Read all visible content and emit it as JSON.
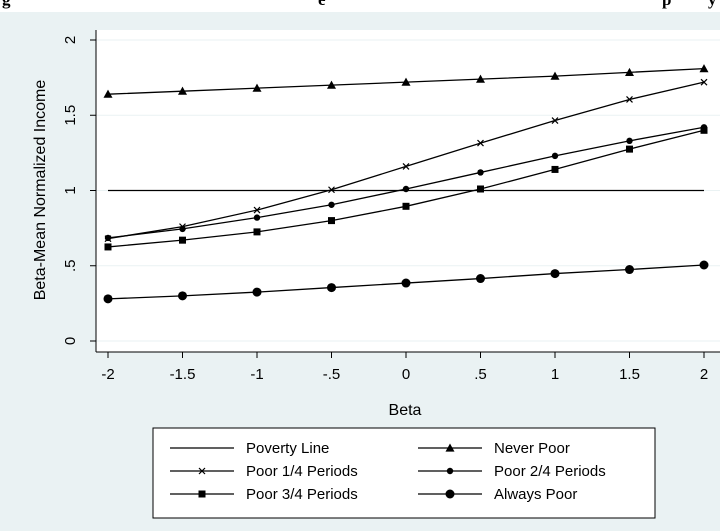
{
  "header_fragment": {
    "left_text": "g",
    "middle_text": "e",
    "right_text": "p",
    "right_text_2": "y"
  },
  "chart_data": {
    "type": "line",
    "title": "",
    "xlabel": "Beta",
    "ylabel": "Beta-Mean Normalized Income",
    "xlim": [
      -2,
      2
    ],
    "ylim": [
      0,
      2
    ],
    "x_ticks": [
      -2,
      -1.5,
      -1,
      -0.5,
      0,
      0.5,
      1,
      1.5,
      2
    ],
    "x_tick_labels": [
      "-2",
      "-1.5",
      "-1",
      "-.5",
      "0",
      ".5",
      "1",
      "1.5",
      "2"
    ],
    "y_ticks": [
      0,
      0.5,
      1,
      1.5,
      2
    ],
    "y_tick_labels": [
      "0",
      ".5",
      "1",
      "1.5",
      "2"
    ],
    "grid": "horizontal",
    "legend_position": "bottom",
    "x": [
      -2,
      -1.5,
      -1,
      -0.5,
      0,
      0.5,
      1,
      1.5,
      2
    ],
    "series": [
      {
        "name": "Poverty Line",
        "marker": "none",
        "values": [
          1,
          1,
          1,
          1,
          1,
          1,
          1,
          1,
          1
        ]
      },
      {
        "name": "Never Poor",
        "marker": "triangle",
        "values": [
          1.64,
          1.66,
          1.68,
          1.7,
          1.72,
          1.74,
          1.76,
          1.785,
          1.81
        ]
      },
      {
        "name": "Poor 1/4 Periods",
        "marker": "x",
        "values": [
          0.68,
          0.76,
          0.87,
          1.005,
          1.16,
          1.315,
          1.465,
          1.605,
          1.72
        ]
      },
      {
        "name": "Poor 2/4 Periods",
        "marker": "small-circle",
        "values": [
          0.685,
          0.745,
          0.82,
          0.905,
          1.01,
          1.12,
          1.23,
          1.33,
          1.42
        ]
      },
      {
        "name": "Poor 3/4 Periods",
        "marker": "square",
        "values": [
          0.625,
          0.67,
          0.725,
          0.8,
          0.895,
          1.01,
          1.14,
          1.275,
          1.4
        ]
      },
      {
        "name": "Always Poor",
        "marker": "large-circle",
        "values": [
          0.28,
          0.3,
          0.325,
          0.355,
          0.385,
          0.415,
          0.448,
          0.475,
          0.505
        ]
      }
    ],
    "colors": {
      "background": "#eaf2f3",
      "plot": "#ffffff",
      "line": "#000000",
      "grid": "#eaf2f3"
    }
  }
}
